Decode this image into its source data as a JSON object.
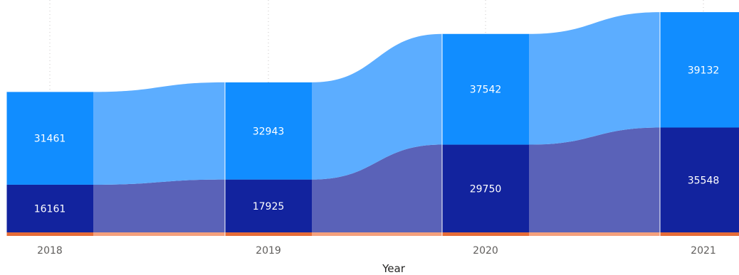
{
  "colors": {
    "bottom_series": "#e66c37",
    "bottom_series_ribbon": "#f4a07c",
    "middle_series": "#12239e",
    "middle_series_ribbon": "#5a62b8",
    "top_series": "#118dff",
    "top_series_ribbon": "#5cadff",
    "gridline": "#c8c6c4",
    "segment_label": "#ffffff",
    "tick_label": "#605e5c"
  },
  "chart_data": {
    "type": "ribbon",
    "xlabel": "Year",
    "ylabel": "",
    "categories": [
      "2018",
      "2019",
      "2020",
      "2021"
    ],
    "ylim": [
      0,
      80000
    ],
    "grid": "vertical dotted",
    "series": [
      {
        "values": [
          1200,
          1200,
          1200,
          1200
        ],
        "labels": [
          "",
          "",
          "",
          ""
        ]
      },
      {
        "values": [
          16161,
          17925,
          29750,
          35548
        ],
        "labels": [
          "16161",
          "17925",
          "29750",
          "35548"
        ]
      },
      {
        "values": [
          31461,
          32943,
          37542,
          39132
        ],
        "labels": [
          "31461",
          "32943",
          "37542",
          "39132"
        ]
      }
    ]
  }
}
